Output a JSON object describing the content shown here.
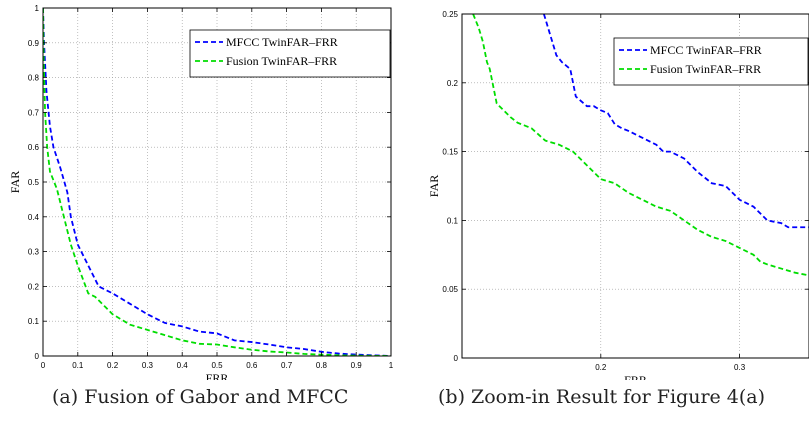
{
  "chart_data": [
    {
      "type": "line",
      "title": "",
      "xlabel": "FRR",
      "ylabel": "FAR",
      "xlim": [
        0,
        1
      ],
      "ylim": [
        0,
        1
      ],
      "grid": true,
      "legend_position": "top-right",
      "x_ticks": [
        "0",
        "0.1",
        "0.2",
        "0.3",
        "0.4",
        "0.5",
        "0.6",
        "0.7",
        "0.8",
        "0.9",
        "1"
      ],
      "y_ticks": [
        "0",
        "0.1",
        "0.2",
        "0.3",
        "0.4",
        "0.5",
        "0.6",
        "0.7",
        "0.8",
        "0.9",
        "1"
      ],
      "series": [
        {
          "name": "MFCC TwinFAR–FRR",
          "color": "#0000ff",
          "style": "dashed",
          "x": [
            0,
            0.003,
            0.01,
            0.02,
            0.03,
            0.05,
            0.07,
            0.08,
            0.1,
            0.12,
            0.14,
            0.16,
            0.18,
            0.2,
            0.25,
            0.3,
            0.35,
            0.4,
            0.45,
            0.5,
            0.55,
            0.6,
            0.65,
            0.7,
            0.75,
            0.8,
            0.85,
            0.9,
            0.95,
            1.0
          ],
          "y": [
            1.0,
            0.9,
            0.76,
            0.66,
            0.6,
            0.54,
            0.47,
            0.4,
            0.32,
            0.28,
            0.24,
            0.2,
            0.19,
            0.18,
            0.15,
            0.12,
            0.095,
            0.085,
            0.07,
            0.065,
            0.045,
            0.04,
            0.033,
            0.025,
            0.02,
            0.012,
            0.007,
            0.004,
            0.002,
            0.0
          ]
        },
        {
          "name": "Fusion TwinFAR–FRR",
          "color": "#00dd00",
          "style": "dashed",
          "x": [
            0,
            0.002,
            0.006,
            0.012,
            0.02,
            0.04,
            0.06,
            0.08,
            0.1,
            0.13,
            0.15,
            0.18,
            0.2,
            0.25,
            0.3,
            0.35,
            0.4,
            0.45,
            0.5,
            0.55,
            0.6,
            0.65,
            0.7,
            0.75,
            0.8,
            0.85,
            0.9,
            0.95,
            1.0
          ],
          "y": [
            1.0,
            0.85,
            0.7,
            0.6,
            0.53,
            0.48,
            0.4,
            0.32,
            0.26,
            0.18,
            0.17,
            0.14,
            0.12,
            0.09,
            0.075,
            0.06,
            0.045,
            0.035,
            0.033,
            0.025,
            0.018,
            0.013,
            0.01,
            0.006,
            0.004,
            0.002,
            0.001,
            0.0005,
            0.0
          ]
        }
      ]
    },
    {
      "type": "line",
      "title": "",
      "xlabel": "FRR",
      "ylabel": "FAR",
      "xlim": [
        0.1,
        0.35
      ],
      "ylim": [
        0,
        0.25
      ],
      "grid": true,
      "legend_position": "top-right",
      "x_ticks": [
        "0.2",
        "0.3"
      ],
      "y_ticks": [
        "0",
        "0.05",
        "0.1",
        "0.15",
        "0.2",
        "0.25"
      ],
      "series": [
        {
          "name": "MFCC TwinFAR–FRR",
          "color": "#0000ff",
          "style": "dashed",
          "x": [
            0.159,
            0.162,
            0.165,
            0.168,
            0.172,
            0.178,
            0.182,
            0.19,
            0.195,
            0.2,
            0.205,
            0.21,
            0.215,
            0.22,
            0.23,
            0.24,
            0.245,
            0.25,
            0.26,
            0.265,
            0.27,
            0.28,
            0.29,
            0.3,
            0.31,
            0.315,
            0.32,
            0.33,
            0.335,
            0.35
          ],
          "y": [
            0.25,
            0.24,
            0.23,
            0.22,
            0.215,
            0.21,
            0.19,
            0.183,
            0.183,
            0.18,
            0.178,
            0.17,
            0.167,
            0.165,
            0.16,
            0.155,
            0.15,
            0.15,
            0.145,
            0.14,
            0.135,
            0.127,
            0.125,
            0.115,
            0.11,
            0.105,
            0.1,
            0.098,
            0.095,
            0.095
          ]
        },
        {
          "name": "Fusion TwinFAR–FRR",
          "color": "#00dd00",
          "style": "dashed",
          "x": [
            0.108,
            0.112,
            0.115,
            0.118,
            0.12,
            0.125,
            0.13,
            0.135,
            0.14,
            0.15,
            0.16,
            0.17,
            0.18,
            0.19,
            0.2,
            0.21,
            0.22,
            0.23,
            0.24,
            0.25,
            0.26,
            0.27,
            0.28,
            0.29,
            0.3,
            0.31,
            0.315,
            0.32,
            0.33,
            0.34,
            0.35
          ],
          "y": [
            0.25,
            0.24,
            0.23,
            0.215,
            0.21,
            0.185,
            0.18,
            0.175,
            0.171,
            0.167,
            0.158,
            0.155,
            0.15,
            0.14,
            0.13,
            0.127,
            0.12,
            0.115,
            0.11,
            0.107,
            0.1,
            0.093,
            0.088,
            0.085,
            0.08,
            0.075,
            0.07,
            0.068,
            0.065,
            0.062,
            0.06
          ]
        }
      ]
    }
  ],
  "captions": {
    "a": "(a) Fusion of Gabor and MFCC",
    "b": "(b) Zoom-in Result for Figure 4(a)"
  }
}
